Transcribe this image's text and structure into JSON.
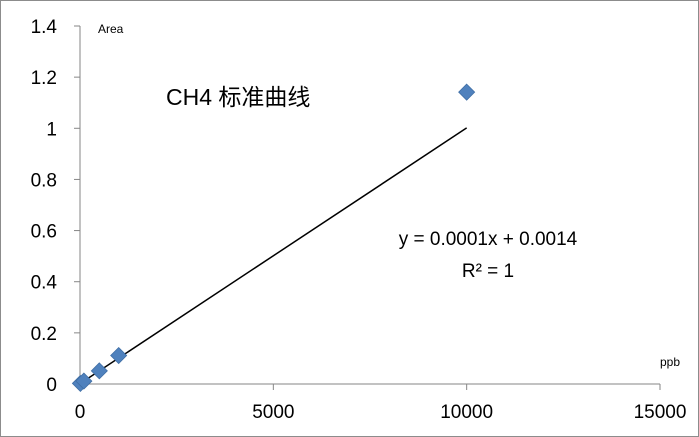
{
  "chart_data": {
    "type": "scatter",
    "title": "CH4 标准曲线",
    "xlabel": "ppb",
    "ylabel": "Area",
    "xlim": [
      0,
      15000
    ],
    "ylim": [
      0,
      1.4
    ],
    "x_ticks": [
      "0",
      "5000",
      "10000",
      "15000"
    ],
    "y_ticks": [
      "0",
      "0.2",
      "0.4",
      "0.6",
      "0.8",
      "1",
      "1.2",
      "1.4"
    ],
    "grid": false,
    "legend": "none",
    "marker_color": "#4F81BD",
    "series": [
      {
        "points": [
          {
            "x": 10,
            "y": 0.0024
          },
          {
            "x": 100,
            "y": 0.0114
          },
          {
            "x": 500,
            "y": 0.0514
          },
          {
            "x": 1000,
            "y": 0.1114
          },
          {
            "x": 10000,
            "y": 1.1414
          }
        ]
      }
    ],
    "trendline": {
      "slope": 0.0001,
      "intercept": 0.0014,
      "x_range": [
        0,
        10000
      ],
      "color": "#000000",
      "equation": "y = 0.0001x + 0.0014",
      "r2": "R² = 1"
    }
  }
}
